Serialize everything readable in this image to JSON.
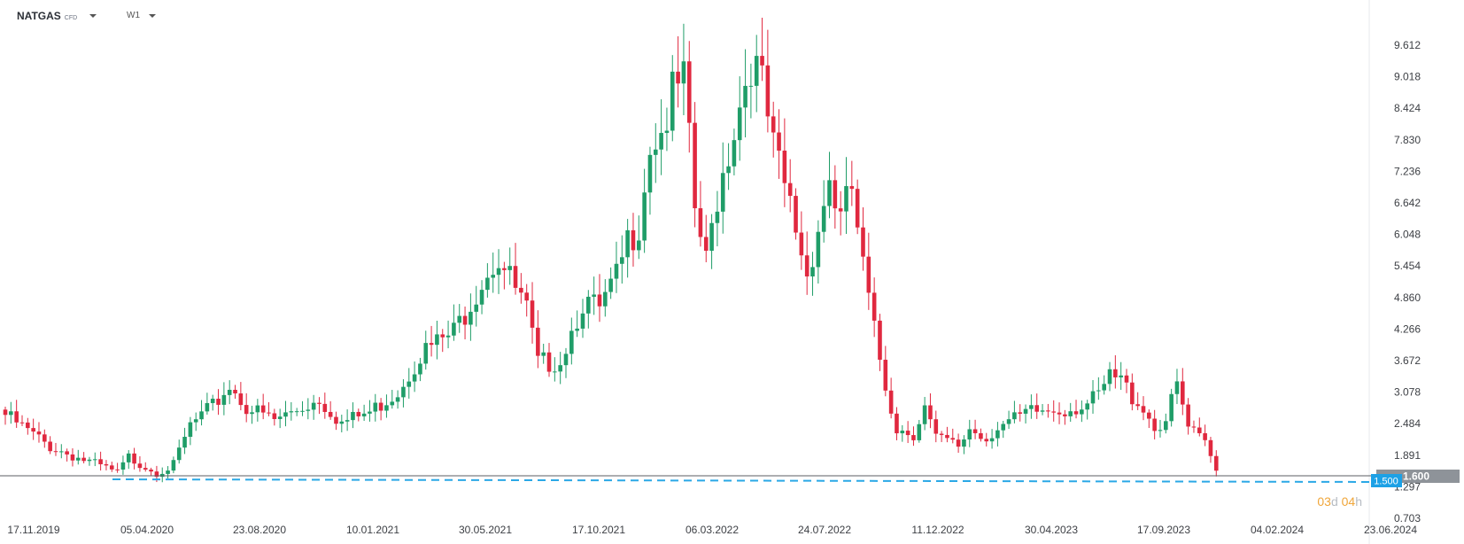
{
  "toolbar": {
    "symbol": "NATGAS",
    "symbol_type": "CFD",
    "timeframe": "W1"
  },
  "countdown": {
    "days": "03",
    "days_unit": "d",
    "hours": "04",
    "hours_unit": "h"
  },
  "colors": {
    "up": "#1f9d68",
    "down": "#e0283f",
    "current_price_tag": "#8e9399",
    "hline": "#2aa8e6",
    "hline_tag": "#1da1e6"
  },
  "chart_data": {
    "type": "candlestick",
    "y_ticks": [
      "9.612",
      "9.018",
      "8.424",
      "7.830",
      "7.236",
      "6.642",
      "6.048",
      "5.454",
      "4.860",
      "4.266",
      "3.672",
      "3.078",
      "2.484",
      "1.891",
      "1.297",
      "0.703"
    ],
    "x_ticks": [
      "17.11.2019",
      "05.04.2020",
      "23.08.2020",
      "10.01.2021",
      "30.05.2021",
      "17.10.2021",
      "06.03.2022",
      "24.07.2022",
      "11.12.2022",
      "30.04.2023",
      "17.09.2023",
      "04.02.2024",
      "23.06.2024"
    ],
    "ylim": [
      0.703,
      9.612
    ],
    "current_price": "1.600",
    "horizontal_line": "1.500",
    "legend": "none",
    "grid": false,
    "close_anchors": [
      [
        0,
        2.65
      ],
      [
        8,
        2.05
      ],
      [
        16,
        1.72
      ],
      [
        20,
        1.55
      ],
      [
        22,
        1.85
      ],
      [
        27,
        1.58
      ],
      [
        30,
        1.7
      ],
      [
        33,
        2.45
      ],
      [
        37,
        2.8
      ],
      [
        40,
        3.2
      ],
      [
        43,
        2.8
      ],
      [
        48,
        2.55
      ],
      [
        52,
        2.75
      ],
      [
        56,
        2.95
      ],
      [
        60,
        2.5
      ],
      [
        65,
        2.7
      ],
      [
        70,
        3.1
      ],
      [
        74,
        3.8
      ],
      [
        80,
        4.2
      ],
      [
        84,
        5.0
      ],
      [
        86,
        5.4
      ],
      [
        88,
        5.6
      ],
      [
        90,
        5.2
      ],
      [
        93,
        4.6
      ],
      [
        95,
        3.6
      ],
      [
        99,
        3.7
      ],
      [
        103,
        4.8
      ],
      [
        106,
        4.6
      ],
      [
        109,
        5.2
      ],
      [
        111,
        5.9
      ],
      [
        113,
        6.3
      ],
      [
        115,
        7.8
      ],
      [
        117,
        8.0
      ],
      [
        119,
        8.6
      ],
      [
        121,
        8.9
      ],
      [
        123,
        6.5
      ],
      [
        125,
        5.5
      ],
      [
        127,
        6.8
      ],
      [
        130,
        8.1
      ],
      [
        133,
        9.4
      ],
      [
        135,
        8.8
      ],
      [
        137,
        7.6
      ],
      [
        140,
        6.6
      ],
      [
        143,
        5.3
      ],
      [
        145,
        6.2
      ],
      [
        147,
        7.1
      ],
      [
        149,
        6.3
      ],
      [
        151,
        6.9
      ],
      [
        153,
        5.4
      ],
      [
        155,
        4.2
      ],
      [
        157,
        3.2
      ],
      [
        159,
        2.4
      ],
      [
        162,
        2.3
      ],
      [
        164,
        2.8
      ],
      [
        166,
        2.2
      ],
      [
        168,
        2.15
      ],
      [
        170,
        2.05
      ],
      [
        172,
        2.4
      ],
      [
        175,
        2.2
      ],
      [
        177,
        2.45
      ],
      [
        180,
        2.55
      ],
      [
        183,
        2.7
      ],
      [
        188,
        2.75
      ],
      [
        191,
        2.8
      ],
      [
        193,
        2.85
      ],
      [
        195,
        3.0
      ],
      [
        197,
        3.35
      ],
      [
        199,
        3.3
      ],
      [
        201,
        3.0
      ],
      [
        203,
        2.8
      ],
      [
        205,
        2.4
      ],
      [
        207,
        2.55
      ],
      [
        209,
        3.2
      ],
      [
        211,
        2.4
      ],
      [
        214,
        2.1
      ],
      [
        216,
        1.6
      ]
    ]
  }
}
